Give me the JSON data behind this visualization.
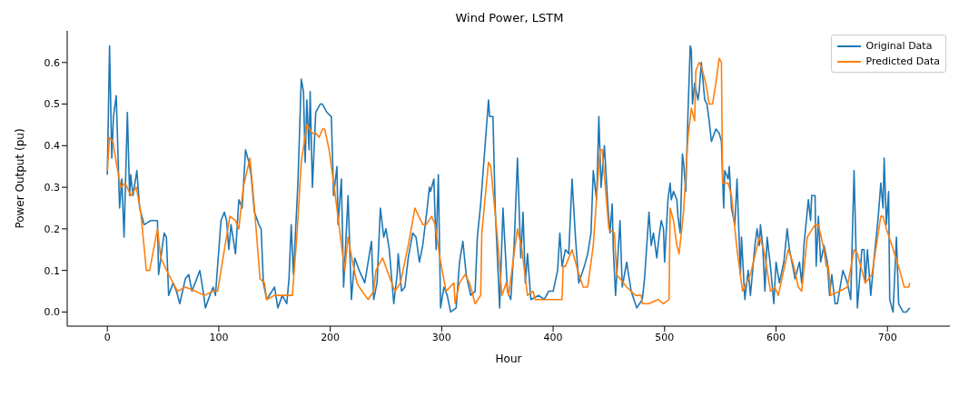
{
  "chart_data": {
    "type": "line",
    "title": "Wind Power, LSTM",
    "xlabel": "Hour",
    "ylabel": "Power Output (pu)",
    "xlim": [
      -36,
      756
    ],
    "xticks": [
      0,
      100,
      200,
      300,
      400,
      500,
      600,
      700
    ],
    "ylim": [
      -0.034,
      0.676
    ],
    "yticks": [
      {
        "value": 0,
        "label": "0.0"
      },
      {
        "value": 0.1,
        "label": "0.1"
      },
      {
        "value": 0.2,
        "label": "0.2"
      },
      {
        "value": 0.3,
        "label": "0.3"
      },
      {
        "value": 0.4,
        "label": "0.4"
      },
      {
        "value": 0.5,
        "label": "0.5"
      },
      {
        "value": 0.6,
        "label": "0.6"
      }
    ],
    "legend": "top right",
    "marker": "none",
    "line_style": "solid",
    "series": [
      {
        "name": "Original Data",
        "color": "#1f77b4",
        "x": [
          0,
          2,
          4,
          5.5,
          8,
          11,
          13,
          15,
          18,
          20,
          21,
          23,
          26.5,
          29,
          33,
          39,
          45,
          46,
          49,
          51,
          53,
          55,
          59,
          62,
          65,
          70,
          73,
          76,
          83,
          86,
          88,
          92,
          95,
          97,
          102,
          105,
          107,
          109,
          111,
          115,
          118,
          121,
          124,
          127,
          129,
          132,
          136,
          138,
          140,
          143,
          150,
          153,
          157,
          161,
          163,
          165,
          167,
          171,
          174,
          176,
          177.5,
          179,
          181,
          182,
          184,
          187,
          191,
          193,
          197,
          201,
          203,
          206,
          207,
          210,
          212,
          216,
          219,
          222,
          226,
          231,
          237,
          239,
          242,
          245,
          248,
          250,
          253,
          257,
          260,
          261,
          264,
          267,
          270,
          274,
          277,
          280,
          283,
          287,
          289,
          290,
          293,
          295,
          297,
          299,
          302,
          305,
          308,
          313,
          316,
          319,
          322,
          326,
          330,
          332,
          335,
          342,
          343,
          346,
          348,
          352,
          355,
          359,
          362,
          365,
          368,
          371,
          373,
          375,
          377,
          380,
          387,
          392,
          396,
          400,
          404,
          406,
          408,
          411,
          414,
          417,
          420,
          423,
          428,
          431,
          434,
          436,
          439,
          441,
          443,
          446,
          449,
          451,
          453,
          454,
          456,
          460,
          462,
          466,
          470,
          475,
          480,
          482,
          486,
          488,
          490,
          493,
          495,
          497,
          499,
          500,
          503,
          505,
          506,
          508,
          511,
          512,
          514,
          516,
          517,
          519,
          521,
          523,
          524,
          525,
          527,
          530,
          531,
          533,
          535,
          536,
          538,
          540,
          542,
          546,
          549,
          551,
          553,
          554,
          557,
          558,
          560,
          563,
          565,
          568,
          569,
          572,
          575,
          577,
          581,
          583,
          585,
          586,
          588,
          590,
          592,
          595,
          598,
          600,
          603,
          607,
          610,
          612,
          615,
          617,
          621,
          623,
          625,
          629,
          631,
          632,
          635,
          636,
          638,
          640,
          643,
          646,
          648,
          650,
          653,
          655,
          660,
          664,
          667,
          670,
          673,
          677,
          679,
          680,
          682,
          685,
          688,
          691,
          692,
          694,
          696,
          697,
          699,
          701,
          702,
          705,
          708,
          710,
          714,
          717,
          720
        ],
        "values": [
          0.33,
          0.64,
          0.37,
          0.47,
          0.52,
          0.25,
          0.32,
          0.18,
          0.48,
          0.28,
          0.33,
          0.28,
          0.34,
          0.25,
          0.21,
          0.22,
          0.22,
          0.09,
          0.15,
          0.19,
          0.18,
          0.04,
          0.07,
          0.05,
          0.02,
          0.08,
          0.09,
          0.05,
          0.1,
          0.05,
          0.01,
          0.04,
          0.06,
          0.04,
          0.22,
          0.24,
          0.22,
          0.15,
          0.21,
          0.14,
          0.27,
          0.25,
          0.39,
          0.36,
          0.33,
          0.24,
          0.21,
          0.2,
          0.07,
          0.03,
          0.06,
          0.01,
          0.04,
          0.02,
          0.08,
          0.21,
          0.09,
          0.31,
          0.56,
          0.53,
          0.36,
          0.51,
          0.39,
          0.53,
          0.3,
          0.48,
          0.5,
          0.5,
          0.48,
          0.47,
          0.28,
          0.35,
          0.21,
          0.32,
          0.06,
          0.28,
          0.03,
          0.13,
          0.1,
          0.07,
          0.17,
          0.03,
          0.07,
          0.25,
          0.18,
          0.2,
          0.15,
          0.02,
          0.09,
          0.14,
          0.05,
          0.06,
          0.13,
          0.19,
          0.18,
          0.12,
          0.16,
          0.25,
          0.3,
          0.29,
          0.32,
          0.15,
          0.33,
          0.01,
          0.06,
          0.04,
          0,
          0.01,
          0.12,
          0.17,
          0.09,
          0.04,
          0.05,
          0.18,
          0.26,
          0.51,
          0.47,
          0.47,
          0.25,
          0.01,
          0.25,
          0.05,
          0.03,
          0.16,
          0.37,
          0.13,
          0.24,
          0.07,
          0.14,
          0.03,
          0.04,
          0.03,
          0.05,
          0.05,
          0.1,
          0.19,
          0.11,
          0.15,
          0.14,
          0.32,
          0.18,
          0.07,
          0.11,
          0.14,
          0.19,
          0.34,
          0.27,
          0.47,
          0.3,
          0.4,
          0.26,
          0.19,
          0.26,
          0.15,
          0.04,
          0.22,
          0.06,
          0.12,
          0.05,
          0.01,
          0.03,
          0.08,
          0.24,
          0.16,
          0.19,
          0.13,
          0.18,
          0.22,
          0.2,
          0.12,
          0.27,
          0.31,
          0.27,
          0.29,
          0.27,
          0.23,
          0.19,
          0.38,
          0.36,
          0.29,
          0.48,
          0.64,
          0.63,
          0.5,
          0.55,
          0.51,
          0.53,
          0.6,
          0.54,
          0.51,
          0.5,
          0.46,
          0.41,
          0.44,
          0.43,
          0.41,
          0.25,
          0.34,
          0.32,
          0.35,
          0.25,
          0.21,
          0.32,
          0.09,
          0.18,
          0.03,
          0.1,
          0.04,
          0.16,
          0.2,
          0.16,
          0.21,
          0.16,
          0.05,
          0.18,
          0.11,
          0.02,
          0.12,
          0.07,
          0.12,
          0.2,
          0.15,
          0.11,
          0.08,
          0.12,
          0.07,
          0.16,
          0.27,
          0.22,
          0.28,
          0.28,
          0.11,
          0.23,
          0.12,
          0.16,
          0.12,
          0.04,
          0.09,
          0.02,
          0.02,
          0.1,
          0.07,
          0.03,
          0.34,
          0.01,
          0.15,
          0.15,
          0.07,
          0.15,
          0.04,
          0.13,
          0.21,
          0.24,
          0.31,
          0.25,
          0.37,
          0.21,
          0.29,
          0.03,
          0,
          0.18,
          0.02,
          0,
          0,
          0.01
        ]
      },
      {
        "name": "Predicted Data",
        "color": "#ff7f0e",
        "x": [
          0,
          2,
          5,
          8,
          12,
          16,
          21,
          26,
          30,
          35,
          38,
          45,
          48,
          55,
          63,
          70,
          79,
          87,
          95,
          99,
          105,
          110,
          115,
          118,
          122,
          128,
          132,
          137,
          141,
          143,
          150,
          158,
          166,
          170,
          174,
          179,
          184,
          187,
          190,
          193,
          195,
          199,
          205,
          213,
          216,
          220,
          224,
          226,
          234,
          239,
          241,
          247,
          251,
          258,
          263,
          270,
          276,
          283,
          286,
          291,
          294,
          299,
          304,
          311,
          312,
          316,
          321,
          325,
          330,
          335,
          336,
          342,
          344,
          350,
          354,
          358,
          360,
          368,
          372,
          377,
          382,
          384,
          394,
          403,
          408,
          409,
          411,
          417,
          422,
          427,
          431,
          436,
          442,
          444,
          450,
          455,
          457,
          460,
          466,
          474,
          479,
          480,
          486,
          494,
          499,
          504,
          505,
          508,
          511,
          513,
          517,
          521,
          524,
          527,
          528,
          531,
          533,
          537,
          540,
          543,
          546,
          549,
          551,
          552,
          557,
          560,
          565,
          570,
          577,
          585,
          589,
          595,
          599,
          602,
          611,
          615,
          620,
          623,
          628,
          635,
          638,
          643,
          645,
          647,
          649,
          657,
          664,
          670,
          673,
          680,
          686,
          694,
          696,
          699,
          704,
          711,
          715,
          719,
          720
        ],
        "values": [
          0.34,
          0.42,
          0.41,
          0.36,
          0.3,
          0.31,
          0.28,
          0.3,
          0.24,
          0.1,
          0.1,
          0.2,
          0.13,
          0.09,
          0.05,
          0.06,
          0.05,
          0.04,
          0.05,
          0.05,
          0.15,
          0.23,
          0.22,
          0.2,
          0.3,
          0.37,
          0.25,
          0.08,
          0.07,
          0.03,
          0.04,
          0.04,
          0.04,
          0.18,
          0.36,
          0.45,
          0.43,
          0.43,
          0.42,
          0.44,
          0.44,
          0.39,
          0.27,
          0.1,
          0.18,
          0.12,
          0.07,
          0.06,
          0.03,
          0.05,
          0.1,
          0.13,
          0.1,
          0.05,
          0.07,
          0.16,
          0.25,
          0.21,
          0.21,
          0.23,
          0.21,
          0.12,
          0.05,
          0.07,
          0.02,
          0.07,
          0.09,
          0.07,
          0.02,
          0.04,
          0.19,
          0.36,
          0.35,
          0.18,
          0.04,
          0.07,
          0.04,
          0.2,
          0.15,
          0.04,
          0.05,
          0.03,
          0.03,
          0.03,
          0.03,
          0.11,
          0.11,
          0.15,
          0.1,
          0.06,
          0.06,
          0.16,
          0.39,
          0.39,
          0.2,
          0.19,
          0.09,
          0.08,
          0.06,
          0.04,
          0.04,
          0.02,
          0.02,
          0.03,
          0.02,
          0.03,
          0.25,
          0.22,
          0.16,
          0.14,
          0.24,
          0.42,
          0.49,
          0.46,
          0.58,
          0.6,
          0.59,
          0.55,
          0.5,
          0.5,
          0.55,
          0.61,
          0.6,
          0.31,
          0.31,
          0.28,
          0.15,
          0.05,
          0.09,
          0.18,
          0.15,
          0.05,
          0.06,
          0.04,
          0.15,
          0.12,
          0.06,
          0.05,
          0.18,
          0.21,
          0.21,
          0.15,
          0.11,
          0.11,
          0.04,
          0.05,
          0.06,
          0.15,
          0.14,
          0.07,
          0.09,
          0.23,
          0.23,
          0.2,
          0.16,
          0.1,
          0.06,
          0.06,
          0.07
        ]
      }
    ]
  }
}
